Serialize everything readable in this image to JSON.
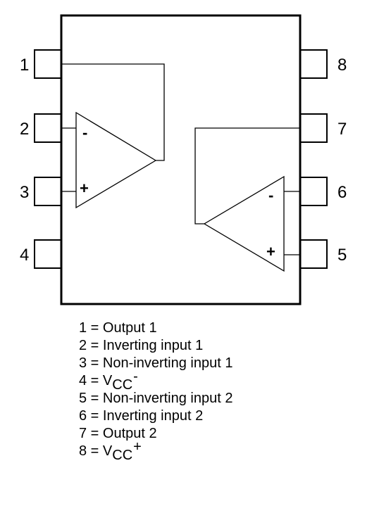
{
  "pins": [
    {
      "number": "1"
    },
    {
      "number": "2"
    },
    {
      "number": "3"
    },
    {
      "number": "4"
    },
    {
      "number": "5"
    },
    {
      "number": "6"
    },
    {
      "number": "7"
    },
    {
      "number": "8"
    }
  ],
  "opamp1": {
    "inverting_sign": "-",
    "noninverting_sign": "+"
  },
  "opamp2": {
    "inverting_sign": "-",
    "noninverting_sign": "+"
  },
  "legend": [
    {
      "text": "1 = Output 1"
    },
    {
      "text": "2 = Inverting input 1"
    },
    {
      "text": "3 = Non-inverting input 1"
    },
    {
      "prefix": "4 = V",
      "sub": "CC",
      "sup": "-"
    },
    {
      "text": "5 = Non-inverting input 2"
    },
    {
      "text": "6 = Inverting input 2"
    },
    {
      "text": "7 = Output 2"
    },
    {
      "prefix": "8 = V",
      "sub": "CC",
      "sup": "+"
    }
  ]
}
